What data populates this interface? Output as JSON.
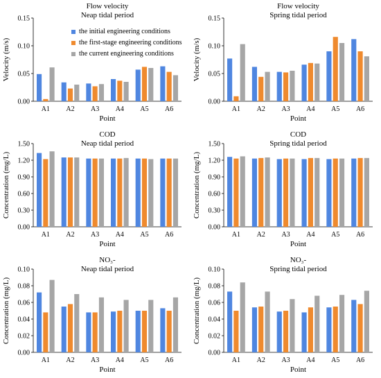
{
  "colors": {
    "initial": "#4f86e0",
    "first_stage": "#ef8a2e",
    "current": "#a6a6a6"
  },
  "legend": {
    "items": [
      {
        "key": "initial",
        "label": "the initial engineering conditions"
      },
      {
        "key": "first_stage",
        "label": "the first-stage engineering conditions"
      },
      {
        "key": "current",
        "label": "the current engineering conditions"
      }
    ]
  },
  "chart_data": [
    {
      "type": "bar",
      "title": "Flow velocity",
      "subtitle": "Neap tidal period",
      "xlabel": "Point",
      "ylabel": "Velocity (m/s)",
      "categories": [
        "A1",
        "A2",
        "A3",
        "A4",
        "A5",
        "A6"
      ],
      "ylim": [
        0,
        0.15
      ],
      "yticks": [
        "0.00",
        "0.05",
        "0.10",
        "0.15"
      ],
      "series": [
        {
          "key": "initial",
          "values": [
            0.049,
            0.034,
            0.032,
            0.04,
            0.057,
            0.063
          ]
        },
        {
          "key": "first_stage",
          "values": [
            0.004,
            0.023,
            0.027,
            0.037,
            0.062,
            0.053
          ]
        },
        {
          "key": "current",
          "values": [
            0.061,
            0.03,
            0.031,
            0.035,
            0.06,
            0.047
          ]
        }
      ]
    },
    {
      "type": "bar",
      "title": "Flow velocity",
      "subtitle": "Spring tidal period",
      "xlabel": "Point",
      "ylabel": "Velocity (m/s)",
      "categories": [
        "A1",
        "A2",
        "A3",
        "A4",
        "A5",
        "A6"
      ],
      "ylim": [
        0,
        0.15
      ],
      "yticks": [
        "0.00",
        "0.05",
        "0.10",
        "0.15"
      ],
      "series": [
        {
          "key": "initial",
          "values": [
            0.077,
            0.062,
            0.053,
            0.066,
            0.09,
            0.112
          ]
        },
        {
          "key": "first_stage",
          "values": [
            0.009,
            0.044,
            0.052,
            0.069,
            0.116,
            0.09
          ]
        },
        {
          "key": "current",
          "values": [
            0.103,
            0.053,
            0.055,
            0.068,
            0.105,
            0.081
          ]
        }
      ]
    },
    {
      "type": "bar",
      "title": "COD",
      "subtitle": "Neap tidal period",
      "xlabel": "Point",
      "ylabel": "Concentration (mg/L)",
      "categories": [
        "A1",
        "A2",
        "A3",
        "A4",
        "A5",
        "A6"
      ],
      "ylim": [
        0,
        1.5
      ],
      "yticks": [
        "0.00",
        "0.30",
        "0.60",
        "0.90",
        "1.20",
        "1.50"
      ],
      "series": [
        {
          "key": "initial",
          "values": [
            1.33,
            1.25,
            1.23,
            1.23,
            1.23,
            1.23
          ]
        },
        {
          "key": "first_stage",
          "values": [
            1.22,
            1.25,
            1.23,
            1.23,
            1.23,
            1.23
          ]
        },
        {
          "key": "current",
          "values": [
            1.36,
            1.25,
            1.23,
            1.24,
            1.22,
            1.23
          ]
        }
      ]
    },
    {
      "type": "bar",
      "title": "COD",
      "subtitle": "Spring tidal period",
      "xlabel": "Point",
      "ylabel": "Concentration (mg/L)",
      "categories": [
        "A1",
        "A2",
        "A3",
        "A4",
        "A5",
        "A6"
      ],
      "ylim": [
        0,
        1.5
      ],
      "yticks": [
        "0.00",
        "0.30",
        "0.60",
        "0.90",
        "1.20",
        "1.50"
      ],
      "series": [
        {
          "key": "initial",
          "values": [
            1.26,
            1.23,
            1.22,
            1.22,
            1.22,
            1.23
          ]
        },
        {
          "key": "first_stage",
          "values": [
            1.23,
            1.24,
            1.23,
            1.24,
            1.23,
            1.24
          ]
        },
        {
          "key": "current",
          "values": [
            1.27,
            1.25,
            1.23,
            1.24,
            1.23,
            1.24
          ]
        }
      ]
    },
    {
      "type": "bar",
      "title": "NO₃-",
      "subtitle": "Neap tidal period",
      "xlabel": "Point",
      "ylabel": "Concentration  (mg/L)",
      "categories": [
        "A1",
        "A2",
        "A3",
        "A4",
        "A5",
        "A6"
      ],
      "ylim": [
        0,
        0.1
      ],
      "yticks": [
        "0.00",
        "0.02",
        "0.04",
        "0.06",
        "0.08",
        "0.10"
      ],
      "series": [
        {
          "key": "initial",
          "values": [
            0.072,
            0.055,
            0.048,
            0.049,
            0.05,
            0.053
          ]
        },
        {
          "key": "first_stage",
          "values": [
            0.048,
            0.058,
            0.048,
            0.05,
            0.05,
            0.05
          ]
        },
        {
          "key": "current",
          "values": [
            0.087,
            0.07,
            0.066,
            0.063,
            0.063,
            0.066
          ]
        }
      ]
    },
    {
      "type": "bar",
      "title": "NO₃-",
      "subtitle": "Spring tidal period",
      "xlabel": "Point",
      "ylabel": "Concentration  (mg/L)",
      "categories": [
        "A1",
        "A2",
        "A3",
        "A4",
        "A5",
        "A6"
      ],
      "ylim": [
        0,
        0.1
      ],
      "yticks": [
        "0.00",
        "0.02",
        "0.04",
        "0.06",
        "0.08",
        "0.10"
      ],
      "series": [
        {
          "key": "initial",
          "values": [
            0.073,
            0.054,
            0.049,
            0.048,
            0.054,
            0.063
          ]
        },
        {
          "key": "first_stage",
          "values": [
            0.05,
            0.055,
            0.05,
            0.054,
            0.055,
            0.058
          ]
        },
        {
          "key": "current",
          "values": [
            0.084,
            0.073,
            0.064,
            0.068,
            0.069,
            0.074
          ]
        }
      ]
    }
  ]
}
